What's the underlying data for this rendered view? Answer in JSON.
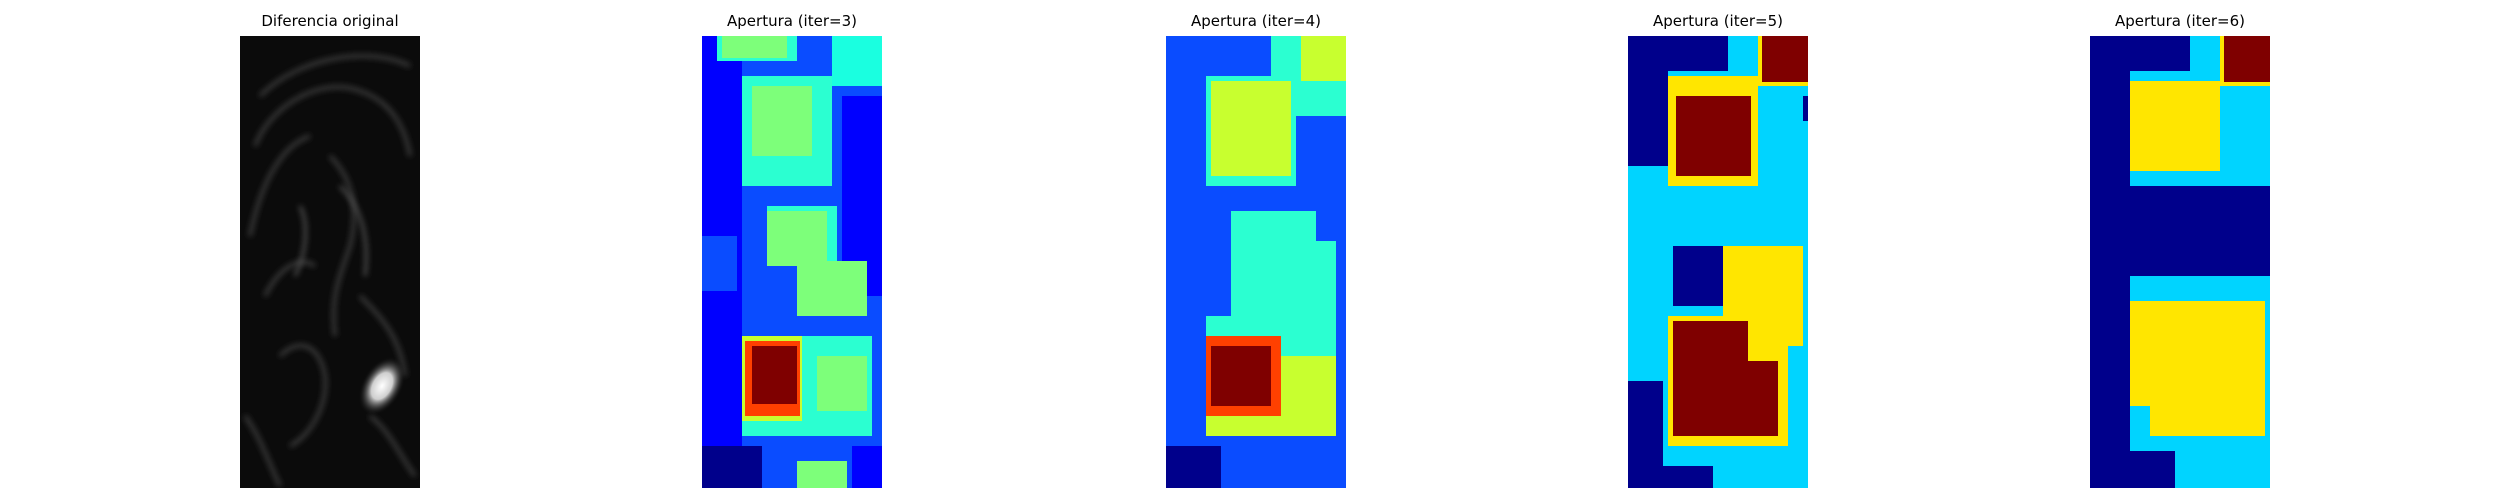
{
  "panels": [
    {
      "title": "Diferencia original",
      "kind": "grayscale"
    },
    {
      "title": "Apertura (iter=3)",
      "kind": "jet"
    },
    {
      "title": "Apertura (iter=4)",
      "kind": "jet"
    },
    {
      "title": "Apertura (iter=5)",
      "kind": "jet"
    },
    {
      "title": "Apertura (iter=6)",
      "kind": "jet"
    }
  ],
  "colors": {
    "jet_darkblue": "#00008b",
    "jet_blue": "#0000ff",
    "jet_mid_blue": "#0a4cff",
    "jet_cyan": "#00d4ff",
    "jet_aqua": "#1affe0",
    "jet_teal": "#2bffd1",
    "jet_green": "#7dff7a",
    "jet_lime": "#c8ff2f",
    "jet_yellow": "#ffe600",
    "jet_orange": "#ff4000",
    "jet_darkred": "#7f0000",
    "gray_dark": "#0b0b0b"
  }
}
